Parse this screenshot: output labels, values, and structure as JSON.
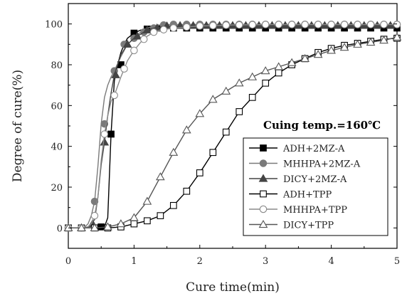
{
  "chart_data": {
    "type": "line",
    "title": "",
    "xlabel": "Cure time(min)",
    "ylabel": "Degree of cure(%)",
    "xlim": [
      0,
      5
    ],
    "ylim": [
      -10,
      110
    ],
    "xticks": [
      0,
      1,
      2,
      3,
      4,
      5
    ],
    "yticks": [
      0,
      20,
      40,
      60,
      80,
      100
    ],
    "grid": false,
    "legend_position": "bottom-right",
    "annotation": "Cuing temp.=160℃",
    "series": [
      {
        "name": "ADH+2MZ-A",
        "color": "#000000",
        "marker": "square-filled",
        "x": [
          0,
          0.1,
          0.2,
          0.3,
          0.4,
          0.5,
          0.55,
          0.6,
          0.65,
          0.7,
          0.75,
          0.8,
          0.85,
          0.9,
          1.0,
          1.1,
          1.2,
          1.3,
          1.4,
          1.5,
          1.75,
          2.0,
          2.5,
          3.0,
          3.5,
          4.0,
          4.5,
          5.0
        ],
        "y": [
          0,
          0,
          0,
          0,
          0,
          0,
          0.5,
          5,
          46,
          72,
          80,
          86,
          90,
          93,
          95.5,
          97,
          97.5,
          97.8,
          98,
          98,
          98,
          98,
          98,
          98,
          98,
          98,
          98,
          98
        ],
        "markers_x": [
          0.5,
          0.65,
          0.8,
          1.0,
          1.2,
          1.4,
          1.6,
          1.8,
          2.0,
          2.2,
          2.4,
          2.6,
          2.8,
          3.0,
          3.2,
          3.4,
          3.6,
          3.8,
          4.0,
          4.2,
          4.4,
          4.6,
          4.8,
          5.0
        ],
        "markers_y": [
          0.5,
          46,
          80,
          95.5,
          97.5,
          98,
          98,
          98,
          98,
          98,
          98,
          98,
          98,
          98,
          98,
          98,
          98,
          98,
          98,
          98,
          98,
          98,
          98,
          98
        ]
      },
      {
        "name": "MHHPA+2MZ-A",
        "color": "#7a7a7a",
        "marker": "circle-filled",
        "x": [
          0,
          0.1,
          0.2,
          0.25,
          0.3,
          0.35,
          0.4,
          0.45,
          0.5,
          0.55,
          0.6,
          0.65,
          0.7,
          0.8,
          0.9,
          1.0,
          1.1,
          1.2,
          1.3,
          1.4,
          1.5,
          2.0,
          2.5,
          3.0,
          3.5,
          4.0,
          4.5,
          5.0
        ],
        "y": [
          0,
          0,
          0,
          0.5,
          2,
          6,
          13,
          30,
          51,
          64,
          70,
          74,
          77,
          84,
          90,
          93,
          96,
          98,
          99,
          99.5,
          99.7,
          99.8,
          99.8,
          99.8,
          99.8,
          99.8,
          99.8,
          99.8
        ],
        "markers_x": [
          0,
          0.2,
          0.4,
          0.55,
          0.7,
          0.85,
          1.0,
          1.15,
          1.3,
          1.45,
          1.6,
          1.8,
          2.0,
          2.2,
          2.4,
          2.6,
          2.8,
          3.0,
          3.2,
          3.4,
          3.6,
          3.8,
          4.0,
          4.2,
          4.4,
          4.6,
          4.8,
          5.0
        ],
        "markers_y": [
          0,
          0,
          13,
          51,
          77,
          90,
          93,
          96,
          98,
          99.5,
          99.8,
          99.8,
          99.8,
          99.8,
          99.8,
          99.8,
          99.8,
          99.8,
          99.8,
          99.8,
          99.8,
          99.8,
          99.8,
          99.8,
          99.8,
          99.8,
          99.8,
          99.8
        ]
      },
      {
        "name": "DICY+2MZ-A",
        "color": "#444444",
        "marker": "triangle-filled",
        "x": [
          0,
          0.1,
          0.2,
          0.3,
          0.4,
          0.45,
          0.5,
          0.55,
          0.6,
          0.65,
          0.7,
          0.8,
          0.9,
          1.0,
          1.1,
          1.2,
          1.3,
          1.4,
          1.5,
          2.0,
          2.5,
          3.0,
          3.5,
          4.0,
          4.5,
          5.0
        ],
        "y": [
          0,
          0,
          0,
          0.5,
          4,
          15,
          31,
          42,
          55,
          66,
          75,
          85,
          90,
          93,
          95,
          97,
          98,
          98.5,
          99,
          99.2,
          99.2,
          99.2,
          99.2,
          99.2,
          99.2,
          99.2
        ],
        "markers_x": [
          0,
          0.2,
          0.37,
          0.55,
          0.72,
          0.9,
          1.05,
          1.2,
          1.35,
          1.5,
          1.7,
          1.9,
          2.1,
          2.3,
          2.5,
          2.7,
          2.9,
          3.1,
          3.3,
          3.5,
          3.7,
          3.9,
          4.1,
          4.3,
          4.5,
          4.7,
          4.9
        ],
        "markers_y": [
          0,
          0,
          2,
          42,
          75,
          90,
          94,
          97,
          98,
          99,
          99.2,
          99.2,
          99.2,
          99.2,
          99.2,
          99.2,
          99.2,
          99.2,
          99.2,
          99.2,
          99.2,
          99.2,
          99.2,
          99.2,
          99.2,
          99.2,
          99.2
        ]
      },
      {
        "name": "ADH+TPP",
        "color": "#000000",
        "marker": "square-open",
        "x": [
          0,
          0.2,
          0.4,
          0.6,
          0.8,
          1.0,
          1.2,
          1.4,
          1.6,
          1.8,
          2.0,
          2.2,
          2.4,
          2.6,
          2.8,
          3.0,
          3.2,
          3.4,
          3.6,
          3.8,
          4.0,
          4.2,
          4.4,
          4.6,
          4.8,
          5.0
        ],
        "y": [
          0,
          0,
          0,
          0,
          0.5,
          2,
          3.5,
          6,
          11,
          18,
          27,
          37,
          47,
          57,
          64,
          71,
          76,
          80,
          83,
          86,
          88,
          89.5,
          90.5,
          91.5,
          92.5,
          93
        ],
        "markers_x": [
          0,
          0.2,
          0.4,
          0.6,
          0.8,
          1.0,
          1.2,
          1.4,
          1.6,
          1.8,
          2.0,
          2.2,
          2.4,
          2.6,
          2.8,
          3.0,
          3.2,
          3.4,
          3.6,
          3.8,
          4.0,
          4.2,
          4.4,
          4.6,
          4.8,
          5.0
        ],
        "markers_y": [
          0,
          0,
          0,
          0,
          0.5,
          2,
          3.5,
          6,
          11,
          18,
          27,
          37,
          47,
          57,
          64,
          71,
          76,
          80,
          83,
          86,
          88,
          89.5,
          90.5,
          91.5,
          92.5,
          93
        ]
      },
      {
        "name": "MHHPA+TPP",
        "color": "#8a8a8a",
        "marker": "circle-open",
        "x": [
          0,
          0.2,
          0.3,
          0.35,
          0.4,
          0.45,
          0.5,
          0.55,
          0.6,
          0.65,
          0.7,
          0.8,
          0.9,
          1.0,
          1.1,
          1.2,
          1.3,
          1.4,
          1.5,
          1.6,
          1.8,
          2.0,
          2.5,
          3.0,
          3.5,
          4.0,
          4.5,
          5.0
        ],
        "y": [
          0,
          0,
          0.5,
          2,
          6,
          15,
          33,
          46,
          55,
          62,
          65,
          74,
          82,
          87,
          91,
          94,
          96,
          97,
          97.5,
          98,
          98.5,
          99,
          99.5,
          99.7,
          99.7,
          99.7,
          99.7,
          99.7
        ],
        "markers_x": [
          0,
          0.2,
          0.4,
          0.55,
          0.7,
          0.85,
          1.0,
          1.15,
          1.3,
          1.45,
          1.6,
          1.8,
          2.0,
          2.2,
          2.4,
          2.6,
          2.8,
          3.0,
          3.2,
          3.4,
          3.6,
          3.8,
          4.0,
          4.2,
          4.4,
          4.6,
          4.8,
          5.0
        ],
        "markers_y": [
          0,
          0,
          6,
          46,
          65,
          78,
          87,
          92.5,
          96,
          97.2,
          98,
          98.5,
          99,
          99.2,
          99.4,
          99.5,
          99.6,
          99.7,
          99.7,
          99.7,
          99.7,
          99.7,
          99.7,
          99.7,
          99.7,
          99.7,
          99.7,
          99.7
        ]
      },
      {
        "name": "DICY+TPP",
        "color": "#555555",
        "marker": "triangle-open",
        "x": [
          0,
          0.2,
          0.4,
          0.6,
          0.8,
          1.0,
          1.2,
          1.4,
          1.6,
          1.8,
          2.0,
          2.2,
          2.4,
          2.6,
          2.8,
          3.0,
          3.2,
          3.4,
          3.6,
          3.8,
          4.0,
          4.2,
          4.4,
          4.6,
          4.8,
          5.0
        ],
        "y": [
          0,
          0,
          0,
          0.5,
          2,
          5,
          13,
          25,
          37,
          48,
          56,
          63,
          67,
          71,
          74,
          77,
          79,
          81,
          83,
          85,
          87,
          88.5,
          90,
          91,
          92,
          93.5
        ],
        "markers_x": [
          0,
          0.2,
          0.4,
          0.6,
          0.8,
          1.0,
          1.2,
          1.4,
          1.6,
          1.8,
          2.0,
          2.2,
          2.4,
          2.6,
          2.8,
          3.0,
          3.2,
          3.4,
          3.6,
          3.8,
          4.0,
          4.2,
          4.4,
          4.6,
          4.8,
          5.0
        ],
        "markers_y": [
          0,
          0,
          0,
          0.5,
          2,
          5,
          13,
          25,
          37,
          48,
          56,
          63,
          67,
          71,
          74,
          77,
          79,
          81,
          83,
          85,
          87,
          88.5,
          90,
          91,
          92,
          93.5
        ]
      }
    ]
  }
}
